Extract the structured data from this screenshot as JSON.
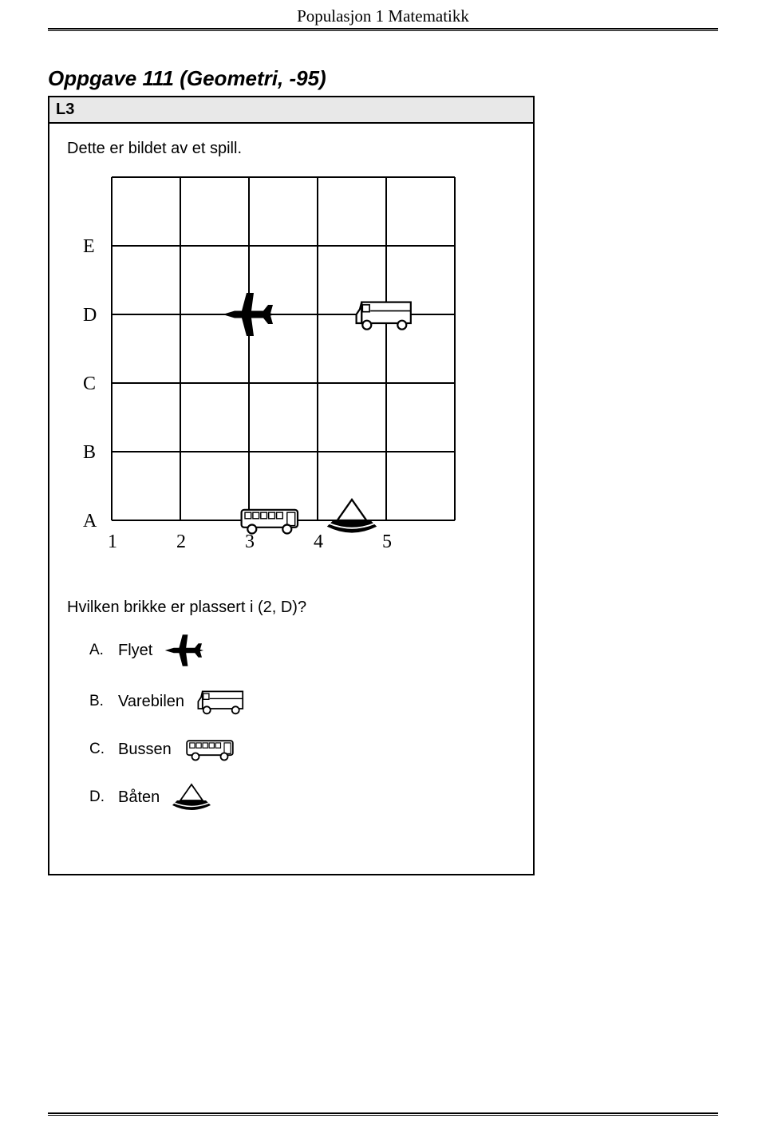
{
  "header": {
    "title": "Populasjon 1 Matematikk"
  },
  "task": {
    "title": "Oppgave 111 (Geometri, -95)",
    "level": "L3",
    "intro": "Dette er bildet av et spill.",
    "question": "Hvilken brikke er plassert i (2, D)?"
  },
  "grid": {
    "row_labels": [
      "E",
      "D",
      "C",
      "B",
      "A"
    ],
    "col_labels": [
      "1",
      "2",
      "3",
      "4",
      "5"
    ],
    "label_fontsize": 24,
    "cell_size": 86,
    "cols": 5,
    "rows": 5,
    "grid_color": "#000000",
    "background": "#ffffff",
    "pieces": [
      {
        "name": "plane",
        "col": 2,
        "row": "D"
      },
      {
        "name": "van",
        "col": 4,
        "row": "D"
      },
      {
        "name": "bus",
        "col": 2,
        "row": "A"
      },
      {
        "name": "boat",
        "col": 3.5,
        "row": "A"
      }
    ]
  },
  "options": [
    {
      "letter": "A.",
      "label": "Flyet",
      "icon": "plane"
    },
    {
      "letter": "B.",
      "label": "Varebilen",
      "icon": "van"
    },
    {
      "letter": "C.",
      "label": "Bussen",
      "icon": "bus"
    },
    {
      "letter": "D.",
      "label": "Båten",
      "icon": "boat"
    }
  ],
  "colors": {
    "text": "#000000",
    "page_bg": "#ffffff",
    "level_bg": "#e8e8e8",
    "border": "#000000"
  }
}
